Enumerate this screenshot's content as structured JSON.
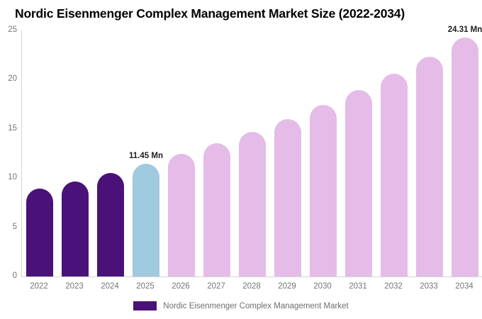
{
  "title": "Nordic Eisenmenger Complex Management Market Size (2022-2034)",
  "legend": {
    "label": "Nordic Eisenmenger Complex Management Market",
    "swatch_color": "#4A1278"
  },
  "colors": {
    "historical_bar": "#4A1278",
    "base_year_bar": "#A0CADF",
    "forecast_bar": "#E4BCE7",
    "axis_line": "#D4D4D4",
    "tick_text": "#757575",
    "title_text": "#000000",
    "data_label_text": "#1D1D1D"
  },
  "chart_data": {
    "type": "bar",
    "title": "Nordic Eisenmenger Complex Management Market Size (2022-2034)",
    "categories": [
      "2022",
      "2023",
      "2024",
      "2025",
      "2026",
      "2027",
      "2028",
      "2029",
      "2030",
      "2031",
      "2032",
      "2033",
      "2034"
    ],
    "values": [
      8.91,
      9.69,
      10.53,
      11.45,
      12.45,
      13.54,
      14.72,
      16.01,
      17.4,
      18.92,
      20.57,
      22.37,
      24.31
    ],
    "unit": "Mn",
    "xlabel": "",
    "ylabel": "",
    "ylim": [
      0,
      25
    ],
    "yticks": [
      0,
      5,
      10,
      15,
      20,
      25
    ],
    "grid": false,
    "legend_position": "bottom",
    "series_name": "Nordic Eisenmenger Complex Management Market",
    "data_labels": [
      {
        "category": "2025",
        "text": "11.45 Mn"
      },
      {
        "category": "2034",
        "text": "24.31 Mn"
      }
    ],
    "bar_colors": [
      "#4A1278",
      "#4A1278",
      "#4A1278",
      "#A0CADF",
      "#E4BCE7",
      "#E4BCE7",
      "#E4BCE7",
      "#E4BCE7",
      "#E4BCE7",
      "#E4BCE7",
      "#E4BCE7",
      "#E4BCE7",
      "#E4BCE7"
    ]
  }
}
